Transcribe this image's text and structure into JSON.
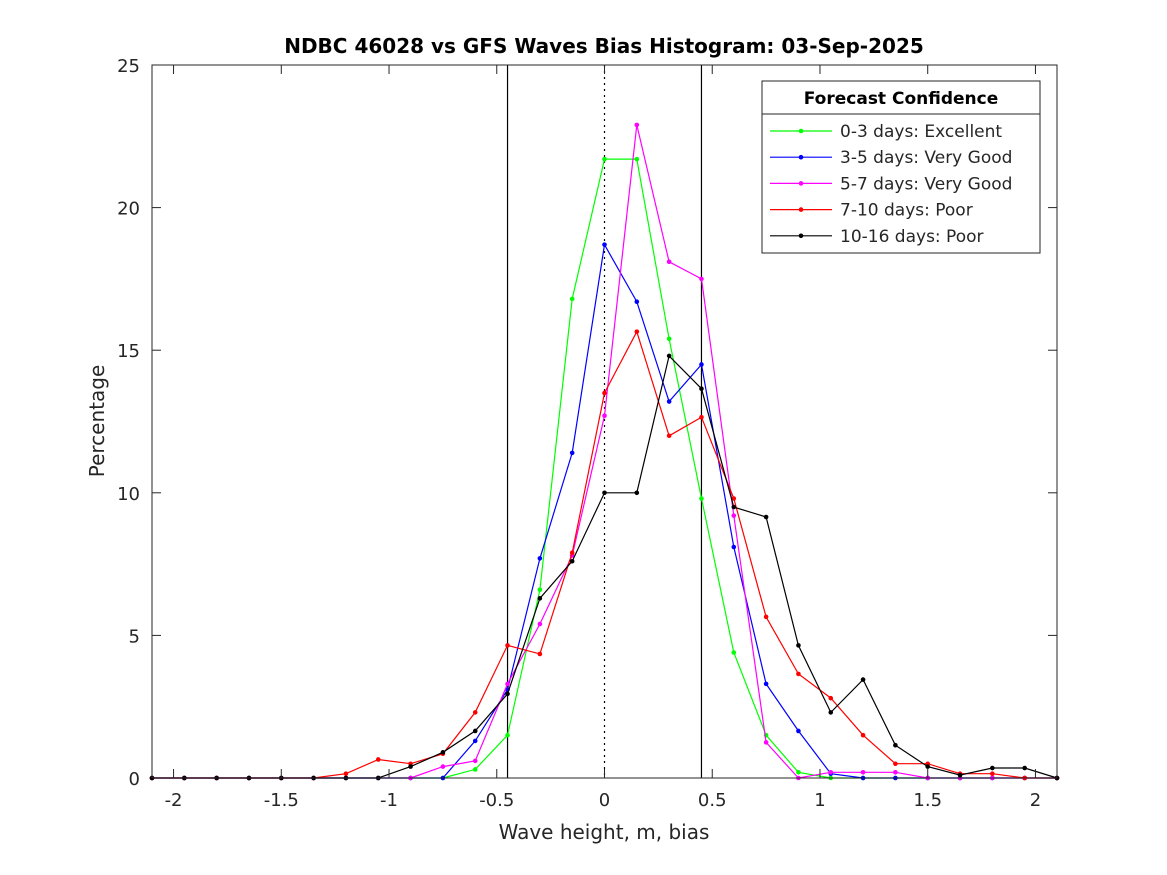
{
  "chart_data": {
    "type": "line",
    "title": "NDBC 46028 vs GFS Waves Bias Histogram: 03-Sep-2025",
    "xlabel": "Wave height, m, bias",
    "ylabel": "Percentage",
    "xlim": [
      -2.1,
      2.1
    ],
    "ylim": [
      0,
      25
    ],
    "xticks": [
      -2,
      -1.5,
      -1,
      -0.5,
      0,
      0.5,
      1,
      1.5,
      2
    ],
    "xtick_labels": [
      "-2",
      "-1.5",
      "-1",
      "-0.5",
      "0",
      "0.5",
      "1",
      "1.5",
      "2"
    ],
    "yticks": [
      0,
      5,
      10,
      15,
      20,
      25
    ],
    "ytick_labels": [
      "0",
      "5",
      "10",
      "15",
      "20",
      "25"
    ],
    "grid": false,
    "reference_lines": {
      "solid": [
        -0.45,
        0.45
      ],
      "dotted": [
        0
      ]
    },
    "legend": {
      "title": "Forecast Confidence",
      "placement": "top-right"
    },
    "x": [
      -2.1,
      -1.95,
      -1.8,
      -1.65,
      -1.5,
      -1.35,
      -1.2,
      -1.05,
      -0.9,
      -0.75,
      -0.6,
      -0.45,
      -0.3,
      -0.15,
      0,
      0.15,
      0.3,
      0.45,
      0.6,
      0.75,
      0.9,
      1.05,
      1.2,
      1.35,
      1.5,
      1.65,
      1.8,
      1.95,
      2.1
    ],
    "series": [
      {
        "name": "0-3 days: Excellent",
        "color": "#00ff00",
        "values": [
          0,
          0,
          0,
          0,
          0,
          0,
          0,
          0,
          0,
          0,
          0.3,
          1.5,
          6.6,
          16.8,
          21.7,
          21.7,
          15.4,
          9.8,
          4.4,
          1.5,
          0.2,
          0,
          0,
          0,
          0,
          0,
          0,
          0,
          0
        ]
      },
      {
        "name": "3-5 days: Very Good",
        "color": "#0000ff",
        "values": [
          0,
          0,
          0,
          0,
          0,
          0,
          0,
          0,
          0,
          0,
          1.3,
          3.1,
          7.7,
          11.4,
          18.7,
          16.7,
          13.2,
          14.5,
          8.1,
          3.3,
          1.65,
          0.15,
          0,
          0,
          0,
          0,
          0,
          0,
          0
        ]
      },
      {
        "name": "5-7 days: Very Good",
        "color": "#ff00ff",
        "values": [
          0,
          0,
          0,
          0,
          0,
          0,
          0,
          0,
          0,
          0.4,
          0.6,
          3.3,
          5.4,
          7.8,
          12.7,
          22.9,
          18.1,
          17.5,
          9.2,
          1.25,
          0,
          0.2,
          0.2,
          0.2,
          0,
          0,
          0,
          0,
          0
        ]
      },
      {
        "name": "7-10 days: Poor",
        "color": "#ff0000",
        "values": [
          0,
          0,
          0,
          0,
          0,
          0,
          0.15,
          0.65,
          0.5,
          0.85,
          2.3,
          4.65,
          4.35,
          7.9,
          13.5,
          15.65,
          12.0,
          12.65,
          9.8,
          5.65,
          3.65,
          2.8,
          1.5,
          0.5,
          0.5,
          0.15,
          0.15,
          0,
          0
        ]
      },
      {
        "name": "10-16 days: Poor",
        "color": "#000000",
        "values": [
          0,
          0,
          0,
          0,
          0,
          0,
          0,
          0,
          0.4,
          0.9,
          1.65,
          2.95,
          6.3,
          7.6,
          10.0,
          10.0,
          14.8,
          13.65,
          9.5,
          9.15,
          4.65,
          2.3,
          3.45,
          1.15,
          0.4,
          0.1,
          0.35,
          0.35,
          0
        ]
      }
    ]
  }
}
